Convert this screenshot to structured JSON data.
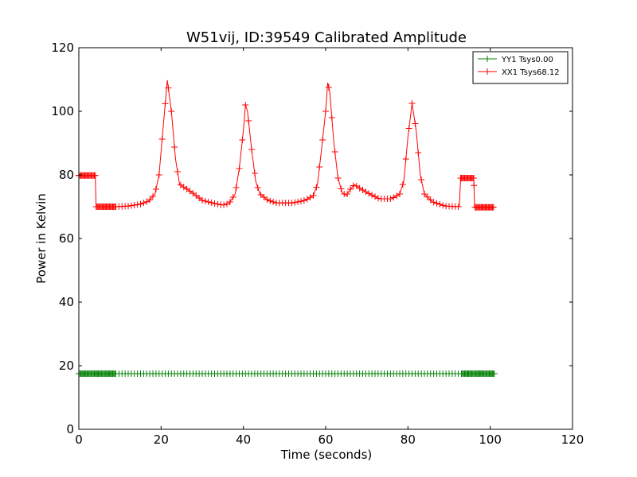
{
  "chart_data": {
    "type": "line",
    "title": "W51vij, ID:39549 Calibrated Amplitude",
    "xlabel": "Time (seconds)",
    "ylabel": "Power in Kelvin",
    "xlim": [
      0,
      120
    ],
    "ylim": [
      0,
      120
    ],
    "xticks": [
      0,
      20,
      40,
      60,
      80,
      100,
      120
    ],
    "yticks": [
      0,
      20,
      40,
      60,
      80,
      100,
      120
    ],
    "grid": false,
    "legend_position": "top-right",
    "marker": "+",
    "series": [
      {
        "name": "YY1 Tsys0.00",
        "color": "#008000",
        "points": [
          [
            0,
            17.5
          ],
          [
            101,
            17.5
          ]
        ],
        "dense_ranges": [
          [
            0,
            9
          ],
          [
            93,
            101
          ]
        ]
      },
      {
        "name": "XX1 Tsys68.12",
        "color": "#ff0000",
        "points": [
          [
            0,
            79.8
          ],
          [
            4,
            79.8
          ],
          [
            4.2,
            70
          ],
          [
            9,
            70
          ],
          [
            12,
            70.2
          ],
          [
            15,
            70.8
          ],
          [
            17,
            71.8
          ],
          [
            18.5,
            74
          ],
          [
            19.5,
            80
          ],
          [
            20.5,
            95
          ],
          [
            21.5,
            109.8
          ],
          [
            22.5,
            100
          ],
          [
            23.5,
            85
          ],
          [
            24.5,
            77
          ],
          [
            26,
            75.8
          ],
          [
            28,
            74
          ],
          [
            30,
            72
          ],
          [
            33,
            71
          ],
          [
            35,
            70.5
          ],
          [
            36.5,
            71
          ],
          [
            38,
            74
          ],
          [
            39,
            82
          ],
          [
            40,
            94
          ],
          [
            40.5,
            102
          ],
          [
            41,
            100
          ],
          [
            42,
            88
          ],
          [
            43,
            78
          ],
          [
            44,
            74
          ],
          [
            46,
            72
          ],
          [
            48,
            71.2
          ],
          [
            52,
            71.2
          ],
          [
            55,
            72
          ],
          [
            57,
            73.5
          ],
          [
            58,
            77
          ],
          [
            59,
            88
          ],
          [
            60,
            100
          ],
          [
            60.5,
            109
          ],
          [
            61,
            106
          ],
          [
            62,
            90
          ],
          [
            63,
            79
          ],
          [
            64,
            74.5
          ],
          [
            65,
            73.5
          ],
          [
            66,
            75.5
          ],
          [
            67,
            77
          ],
          [
            68,
            76
          ],
          [
            70,
            74.5
          ],
          [
            73,
            72.5
          ],
          [
            76,
            72.5
          ],
          [
            78,
            74
          ],
          [
            79,
            78
          ],
          [
            80,
            92
          ],
          [
            81,
            102.5
          ],
          [
            82,
            94
          ],
          [
            83,
            80
          ],
          [
            84,
            74
          ],
          [
            86,
            71.5
          ],
          [
            89,
            70.2
          ],
          [
            92.5,
            70
          ],
          [
            92.8,
            79
          ],
          [
            96,
            79
          ],
          [
            96.2,
            69.8
          ],
          [
            101,
            69.8
          ]
        ],
        "dense_ranges": [
          [
            0,
            4
          ],
          [
            4.2,
            9
          ],
          [
            92.8,
            101
          ]
        ]
      }
    ]
  }
}
